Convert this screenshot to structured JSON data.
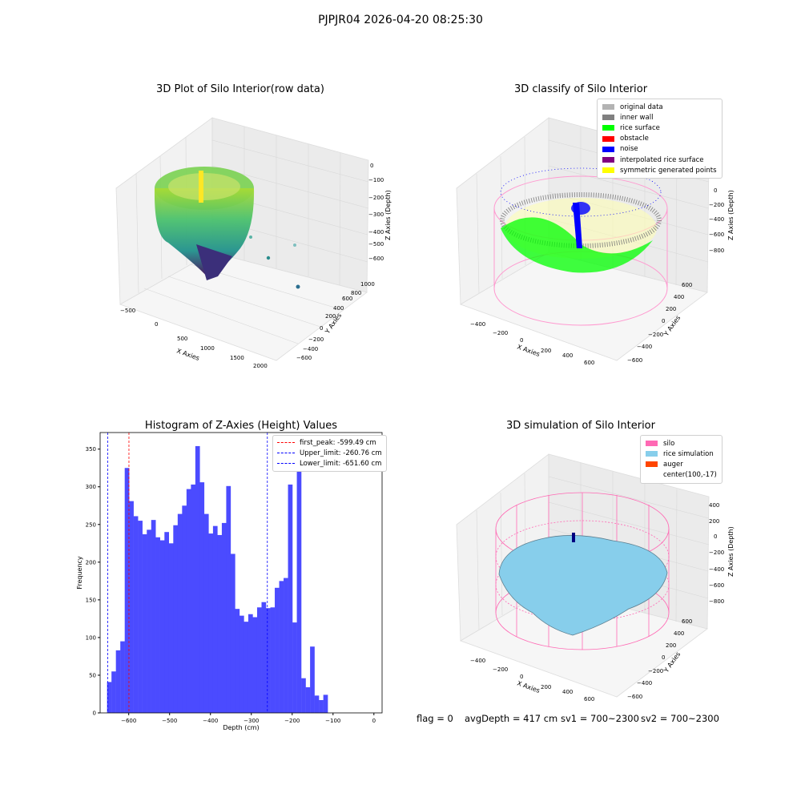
{
  "figure": {
    "suptitle": "PJPJR04 2026-04-20 08:25:30",
    "footer": {
      "flag": "flag = 0",
      "avg_depth": "avgDepth = 417 cm",
      "sv1": "sv1 = 700~2300",
      "sv2": "sv2 = 700~2300"
    }
  },
  "panels": {
    "raw3d": {
      "title": "3D Plot of Silo Interior(row data)",
      "xlabel": "X Axies",
      "ylabel": "Y Axies",
      "zlabel": "Z Axies (Depth)",
      "xticks": [
        "−500",
        "0",
        "500",
        "1000",
        "1500",
        "2000"
      ],
      "yticks": [
        "−600",
        "−400",
        "−200",
        "0",
        "200",
        "400",
        "600",
        "800",
        "1000"
      ],
      "zticks": [
        "0",
        "−100",
        "−200",
        "−300",
        "−400",
        "−500",
        "−600"
      ],
      "colormap": "viridis"
    },
    "classify3d": {
      "title": "3D classify of Silo Interior",
      "xlabel": "X Axies",
      "ylabel": "Y Axies",
      "zlabel": "Z Axies (Depth)",
      "xticks": [
        "−400",
        "−200",
        "0",
        "200",
        "400",
        "600"
      ],
      "yticks": [
        "−600",
        "−400",
        "−200",
        "0",
        "200",
        "400",
        "600"
      ],
      "zticks": [
        "200",
        "0",
        "−200",
        "−400",
        "−600",
        "−800"
      ],
      "legend": [
        {
          "label": "original data",
          "color": "#b3b3b3"
        },
        {
          "label": "inner wall",
          "color": "#808080"
        },
        {
          "label": "rice surface",
          "color": "#00ff00"
        },
        {
          "label": "obstacle",
          "color": "#ff0000"
        },
        {
          "label": "noise",
          "color": "#0000ff"
        },
        {
          "label": "interpolated rice surface",
          "color": "#800080"
        },
        {
          "label": "symmetric generated points",
          "color": "#ffff00"
        }
      ]
    },
    "sim3d": {
      "title": "3D simulation of Silo Interior",
      "xlabel": "X Axies",
      "ylabel": "Y Axies",
      "zlabel": "Z Axies (Depth)",
      "xticks": [
        "−400",
        "−200",
        "0",
        "200",
        "400",
        "600"
      ],
      "yticks": [
        "−600",
        "−400",
        "−200",
        "0",
        "200",
        "400",
        "600"
      ],
      "zticks": [
        "400",
        "200",
        "0",
        "−200",
        "−400",
        "−600",
        "−800"
      ],
      "legend": [
        {
          "label": "silo",
          "color": "#ff69b4"
        },
        {
          "label": "rice simulation",
          "color": "#87ceeb"
        },
        {
          "label": "auger",
          "color": "#ff4500"
        },
        {
          "label": "center(100,-17)",
          "color": ""
        }
      ]
    }
  },
  "chart_data": [
    {
      "type": "bar",
      "title": "Histogram of Z-Axies (Height) Values",
      "xlabel": "Depth (cm)",
      "ylabel": "Frequency",
      "bar_color": "#4b4bff",
      "xlim": [
        -670,
        20
      ],
      "ylim": [
        0,
        372
      ],
      "xticks": [
        -600,
        -500,
        -400,
        -300,
        -200,
        -100,
        0
      ],
      "xtick_labels": [
        "−600",
        "−500",
        "−400",
        "−300",
        "−200",
        "−100",
        "0"
      ],
      "yticks": [
        0,
        50,
        100,
        150,
        200,
        250,
        300,
        350
      ],
      "xmin": -653,
      "bin_width": 10.8,
      "values": [
        41,
        55,
        83,
        95,
        325,
        281,
        261,
        255,
        237,
        243,
        256,
        233,
        229,
        240,
        225,
        249,
        264,
        275,
        297,
        303,
        354,
        306,
        264,
        238,
        248,
        236,
        252,
        301,
        211,
        138,
        129,
        121,
        131,
        127,
        140,
        147,
        139,
        140,
        166,
        175,
        179,
        303,
        120,
        335,
        46,
        34,
        88,
        23,
        17,
        24
      ],
      "vlines": [
        {
          "x": -599.49,
          "color": "#ff0000",
          "label": "first_peak: -599.49 cm"
        },
        {
          "x": -260.76,
          "color": "#0000ff",
          "label": "Upper_limit: -260.76 cm"
        },
        {
          "x": -651.6,
          "color": "#0000ff",
          "label": "Lower_limit: -651.60 cm"
        }
      ],
      "legend_position": "top-right"
    }
  ]
}
